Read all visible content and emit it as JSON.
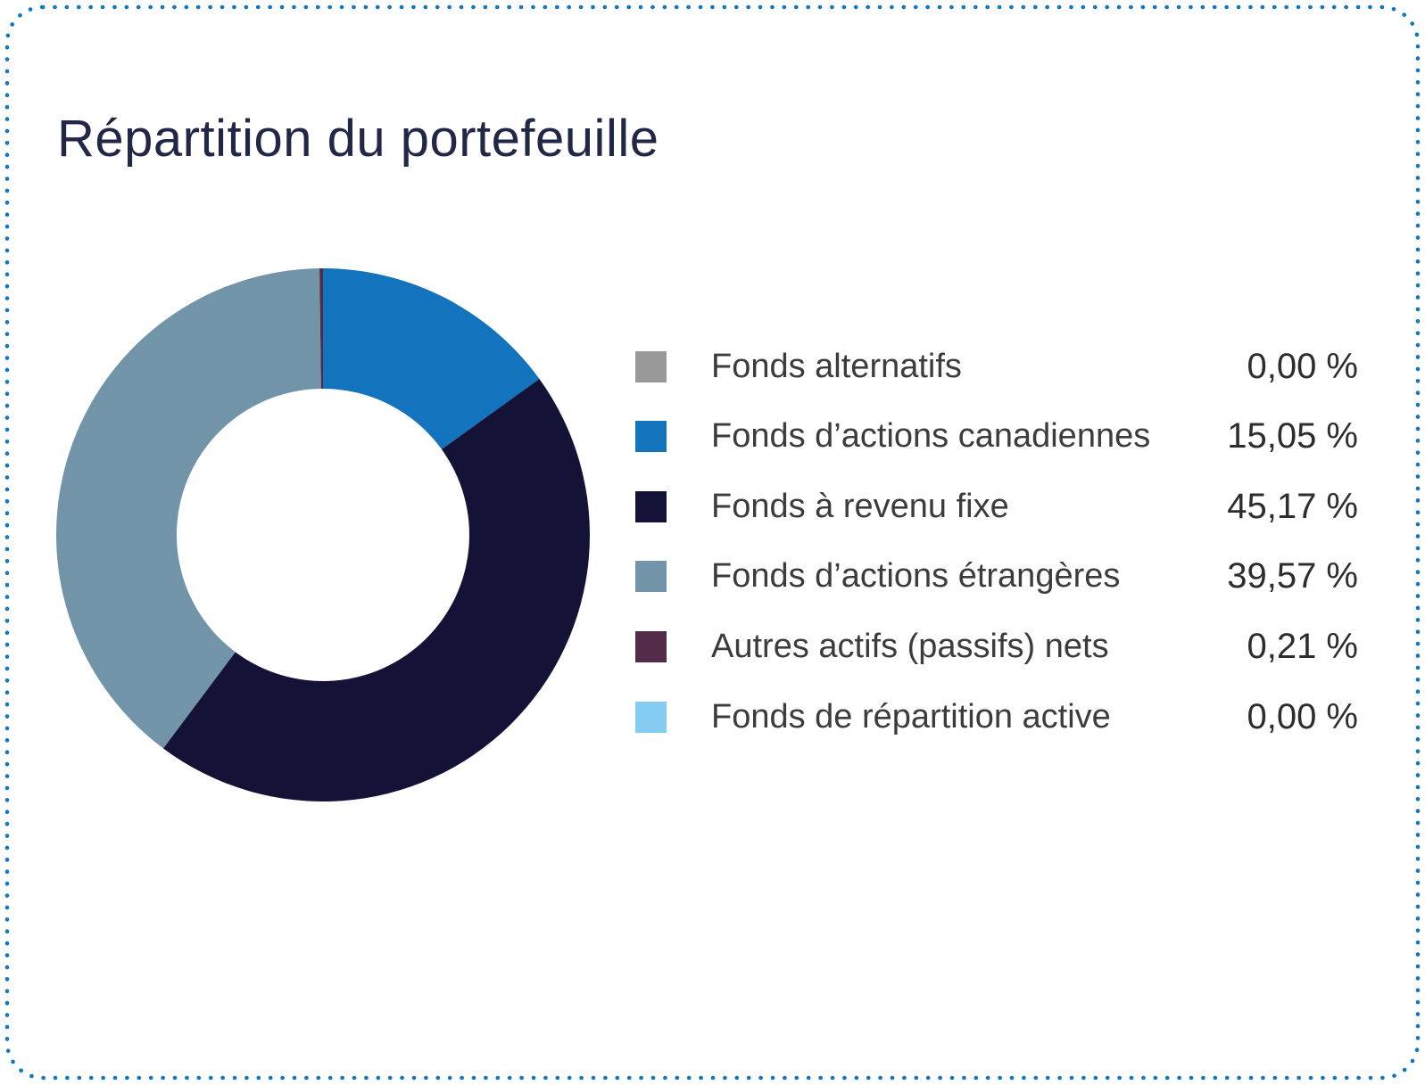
{
  "page": {
    "border_color": "#1377bd",
    "background_color": "#ffffff"
  },
  "chart_data": {
    "type": "pie",
    "subtype": "donut",
    "title": "Répartition du portefeuille",
    "title_color": "#222647",
    "legend_position": "right",
    "start_angle_deg": 0,
    "direction": "clockwise",
    "inner_radius_ratio": 0.55,
    "categories": [
      "Fonds alternatifs",
      "Fonds d’actions canadiennes",
      "Fonds à revenu fixe",
      "Fonds d’actions étrangères",
      "Autres actifs (passifs) nets",
      "Fonds de répartition active"
    ],
    "values": [
      0.0,
      15.05,
      45.17,
      39.57,
      0.21,
      0.0
    ],
    "values_display": [
      "0,00 %",
      "15,05 %",
      "45,17 %",
      "39,57 %",
      "0,21 %",
      "0,00 %"
    ],
    "colors": [
      "#999999",
      "#1373bc",
      "#151238",
      "#7194a9",
      "#532c49",
      "#85ccf2"
    ]
  }
}
